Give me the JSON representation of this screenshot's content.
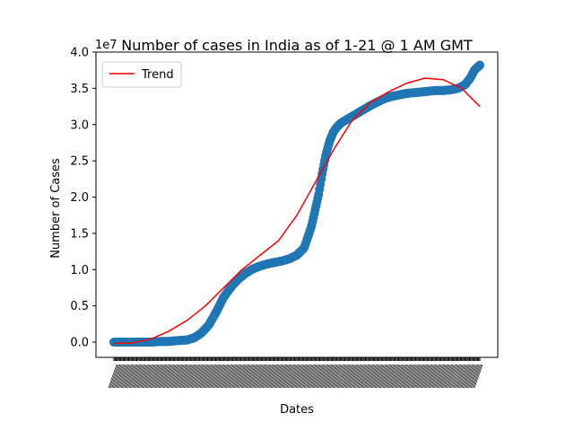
{
  "chart_data": {
    "type": "scatter",
    "title": "Number of cases in India as of 1-21 @ 1 AM GMT",
    "xlabel": "Dates",
    "ylabel": "Number of Cases",
    "y_offset_label": "1e7",
    "ylim": [
      -0.21,
      4.0
    ],
    "y_ticks": [
      "0.0",
      "0.5",
      "1.0",
      "1.5",
      "2.0",
      "2.5",
      "3.0",
      "3.5",
      "4.0"
    ],
    "y_tick_values": [
      0.0,
      0.5,
      1.0,
      1.5,
      2.0,
      2.5,
      3.0,
      3.5,
      4.0
    ],
    "grid": false,
    "legend_placement": "top-left",
    "series": [
      {
        "label": "",
        "kind": "scatter",
        "color": "#1f77b4",
        "x": [
          0,
          0.03,
          0.05,
          0.08,
          0.1,
          0.13,
          0.15,
          0.17,
          0.2,
          0.22,
          0.24,
          0.26,
          0.28,
          0.3,
          0.32,
          0.34,
          0.36,
          0.38,
          0.4,
          0.42,
          0.44,
          0.46,
          0.48,
          0.5,
          0.52,
          0.54,
          0.56,
          0.57,
          0.58,
          0.59,
          0.6,
          0.61,
          0.62,
          0.63,
          0.64,
          0.65,
          0.66,
          0.67,
          0.68,
          0.7,
          0.72,
          0.74,
          0.76,
          0.78,
          0.8,
          0.82,
          0.84,
          0.86,
          0.88,
          0.9,
          0.92,
          0.94,
          0.96,
          0.975,
          0.985,
          1.0
        ],
        "y": [
          0.0,
          0.0,
          0.0,
          0.0,
          0.0,
          0.01,
          0.01,
          0.02,
          0.03,
          0.06,
          0.13,
          0.24,
          0.42,
          0.62,
          0.76,
          0.87,
          0.95,
          1.01,
          1.05,
          1.08,
          1.1,
          1.12,
          1.15,
          1.2,
          1.3,
          1.6,
          2.05,
          2.35,
          2.6,
          2.78,
          2.9,
          2.97,
          3.02,
          3.05,
          3.08,
          3.11,
          3.14,
          3.17,
          3.2,
          3.26,
          3.31,
          3.36,
          3.39,
          3.41,
          3.43,
          3.44,
          3.45,
          3.46,
          3.47,
          3.47,
          3.48,
          3.5,
          3.55,
          3.65,
          3.75,
          3.82
        ]
      },
      {
        "label": "Trend",
        "kind": "line",
        "color": "#ff0000",
        "x": [
          0,
          0.05,
          0.1,
          0.15,
          0.2,
          0.25,
          0.3,
          0.35,
          0.4,
          0.45,
          0.5,
          0.55,
          0.6,
          0.65,
          0.7,
          0.75,
          0.8,
          0.85,
          0.9,
          0.95,
          1.0
        ],
        "y": [
          -0.02,
          -0.01,
          0.04,
          0.15,
          0.3,
          0.5,
          0.75,
          1.0,
          1.2,
          1.4,
          1.75,
          2.2,
          2.65,
          3.05,
          3.3,
          3.45,
          3.57,
          3.64,
          3.62,
          3.5,
          3.25
        ]
      }
    ]
  }
}
